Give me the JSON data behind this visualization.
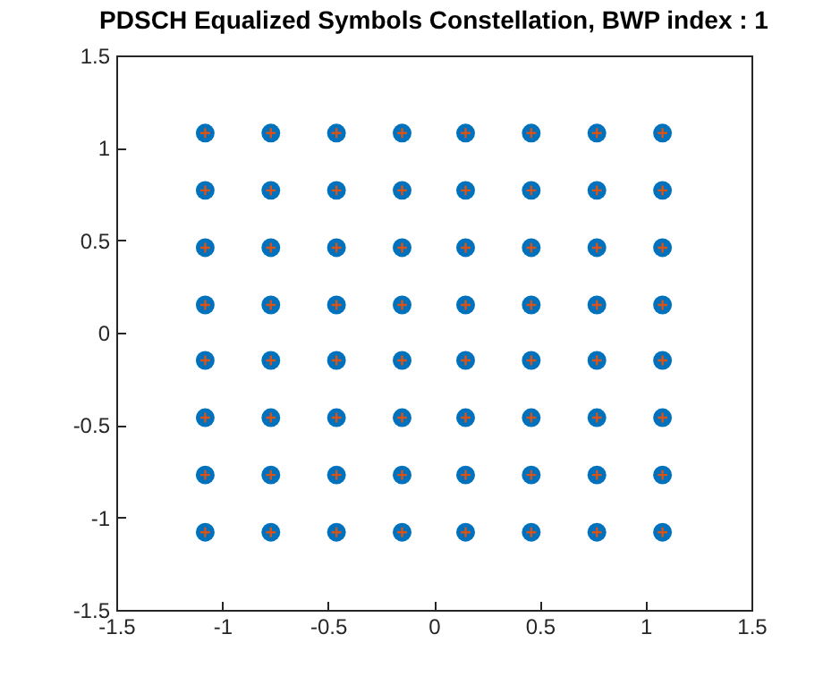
{
  "chart_data": {
    "type": "scatter",
    "title": "PDSCH Equalized Symbols Constellation, BWP index : 1",
    "xlim": [
      -1.5,
      1.5
    ],
    "xticks": [
      -1.5,
      -1,
      -0.5,
      0,
      0.5,
      1,
      1.5
    ],
    "ylim": [
      -1.5,
      1.5
    ],
    "yticks": [
      -1.5,
      -1,
      -0.5,
      0,
      0.5,
      1,
      1.5
    ],
    "grid": false,
    "series": [
      {
        "color": "#0072bd",
        "marker": "circle",
        "x": [
          -1.08,
          -1.08,
          -1.08,
          -1.08,
          -1.08,
          -1.08,
          -1.08,
          -1.08,
          -0.77,
          -0.77,
          -0.77,
          -0.77,
          -0.77,
          -0.77,
          -0.77,
          -0.77,
          -0.46,
          -0.46,
          -0.46,
          -0.46,
          -0.46,
          -0.46,
          -0.46,
          -0.46,
          -0.15,
          -0.15,
          -0.15,
          -0.15,
          -0.15,
          -0.15,
          -0.15,
          -0.15,
          0.15,
          0.15,
          0.15,
          0.15,
          0.15,
          0.15,
          0.15,
          0.15,
          0.46,
          0.46,
          0.46,
          0.46,
          0.46,
          0.46,
          0.46,
          0.46,
          0.77,
          0.77,
          0.77,
          0.77,
          0.77,
          0.77,
          0.77,
          0.77,
          1.08,
          1.08,
          1.08,
          1.08,
          1.08,
          1.08,
          1.08,
          1.08
        ],
        "values": [
          -1.08,
          -0.77,
          -0.46,
          -0.15,
          0.15,
          0.46,
          0.77,
          1.08,
          -1.08,
          -0.77,
          -0.46,
          -0.15,
          0.15,
          0.46,
          0.77,
          1.08,
          -1.08,
          -0.77,
          -0.46,
          -0.15,
          0.15,
          0.46,
          0.77,
          1.08,
          -1.08,
          -0.77,
          -0.46,
          -0.15,
          0.15,
          0.46,
          0.77,
          1.08,
          -1.08,
          -0.77,
          -0.46,
          -0.15,
          0.15,
          0.46,
          0.77,
          1.08,
          -1.08,
          -0.77,
          -0.46,
          -0.15,
          0.15,
          0.46,
          0.77,
          1.08,
          -1.08,
          -0.77,
          -0.46,
          -0.15,
          0.15,
          0.46,
          0.77,
          1.08,
          -1.08,
          -0.77,
          -0.46,
          -0.15,
          0.15,
          0.46,
          0.77,
          1.08
        ]
      },
      {
        "color": "#d95319",
        "marker": "cross",
        "x": [
          -1.08,
          -1.08,
          -1.08,
          -1.08,
          -1.08,
          -1.08,
          -1.08,
          -1.08,
          -0.77,
          -0.77,
          -0.77,
          -0.77,
          -0.77,
          -0.77,
          -0.77,
          -0.77,
          -0.46,
          -0.46,
          -0.46,
          -0.46,
          -0.46,
          -0.46,
          -0.46,
          -0.46,
          -0.15,
          -0.15,
          -0.15,
          -0.15,
          -0.15,
          -0.15,
          -0.15,
          -0.15,
          0.15,
          0.15,
          0.15,
          0.15,
          0.15,
          0.15,
          0.15,
          0.15,
          0.46,
          0.46,
          0.46,
          0.46,
          0.46,
          0.46,
          0.46,
          0.46,
          0.77,
          0.77,
          0.77,
          0.77,
          0.77,
          0.77,
          0.77,
          0.77,
          1.08,
          1.08,
          1.08,
          1.08,
          1.08,
          1.08,
          1.08,
          1.08
        ],
        "values": [
          -1.08,
          -0.77,
          -0.46,
          -0.15,
          0.15,
          0.46,
          0.77,
          1.08,
          -1.08,
          -0.77,
          -0.46,
          -0.15,
          0.15,
          0.46,
          0.77,
          1.08,
          -1.08,
          -0.77,
          -0.46,
          -0.15,
          0.15,
          0.46,
          0.77,
          1.08,
          -1.08,
          -0.77,
          -0.46,
          -0.15,
          0.15,
          0.46,
          0.77,
          1.08,
          -1.08,
          -0.77,
          -0.46,
          -0.15,
          0.15,
          0.46,
          0.77,
          1.08,
          -1.08,
          -0.77,
          -0.46,
          -0.15,
          0.15,
          0.46,
          0.77,
          1.08,
          -1.08,
          -0.77,
          -0.46,
          -0.15,
          0.15,
          0.46,
          0.77,
          1.08,
          -1.08,
          -0.77,
          -0.46,
          -0.15,
          0.15,
          0.46,
          0.77,
          1.08
        ]
      }
    ]
  }
}
